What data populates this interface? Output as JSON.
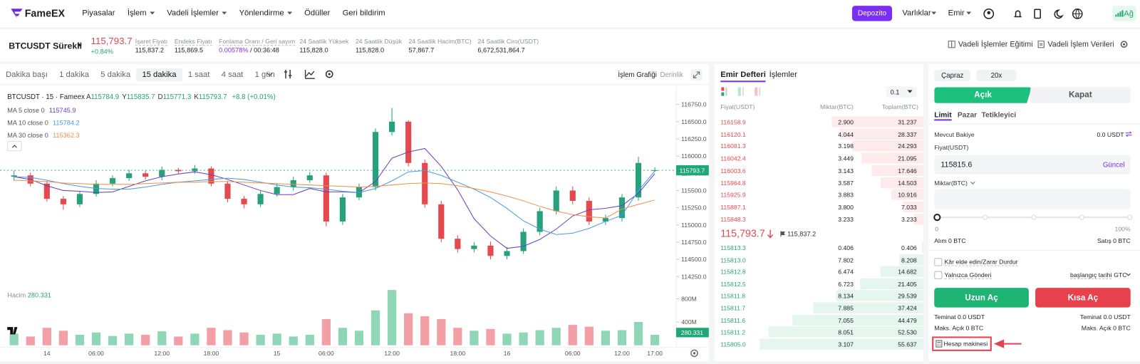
{
  "nav": {
    "logo": "FameEX",
    "items": [
      "Piyasalar",
      "İşlem",
      "Vadeli İşlemler",
      "Yönlendirme",
      "Ödüller",
      "Geri bildirim"
    ],
    "deposit": "Depozito",
    "assets": "Varlıklar",
    "orders": "Emir",
    "network": "Ağ"
  },
  "ticker": {
    "symbol": "BTCUSDT Sürekli",
    "price": "115,793.7",
    "change": "+0.84%",
    "stats": [
      {
        "label": "İşaret Fiyatı",
        "value": "115,837.2"
      },
      {
        "label": "Endeks Fiyatı",
        "value": "115,869.5"
      },
      {
        "label": "Fonlama Oranı / Geri sayım",
        "value": "0.00578%",
        "extra": "/ 00:36:48"
      },
      {
        "label": "24 Saatlik Yüksek",
        "value": "115,828.0"
      },
      {
        "label": "24 Saatlik Düşük",
        "value": "115,828.0"
      },
      {
        "label": "24 Saatlik Hacim(BTC)",
        "value": "57,867.7"
      },
      {
        "label": "24 Saatlik Ciro(USDT)",
        "value": "6,672,531,864.7"
      }
    ],
    "links": [
      "Vadeli İşlemler Eğitimi",
      "Vadeli İşlem Verileri"
    ]
  },
  "toolbar": {
    "intervals": [
      "Dakika başı",
      "1 dakika",
      "5 dakika",
      "15 dakika",
      "1 saat",
      "4 saat",
      "1 gün"
    ],
    "selected_interval": 3,
    "views": [
      "İşlem Grafiği",
      "Derinlik"
    ]
  },
  "chart_data": {
    "type": "candlestick",
    "title": "BTCUSDT · 15 · Fameex",
    "ohlc_keys": [
      "A",
      "Y",
      "D",
      "K"
    ],
    "change": "+8.8 (+0.01%)",
    "up_color": "#26a17b",
    "down_color": "#e5484d",
    "categories": [
      null,
      null,
      "14",
      null,
      null,
      "06:00",
      null,
      null,
      null,
      "12:00",
      null,
      null,
      "18:00",
      null,
      null,
      null,
      "15",
      null,
      null,
      "06:00",
      null,
      null,
      null,
      "12:00",
      null,
      null,
      null,
      "18:00",
      null,
      null,
      "16",
      null,
      null,
      null,
      "06:00",
      null,
      null,
      "12:00",
      null,
      "17:00"
    ],
    "candles": {
      "open": [
        115700,
        115720,
        115600,
        115380,
        115300,
        115450,
        115600,
        115680,
        115750,
        115700,
        115800,
        115780,
        115820,
        115600,
        115380,
        115300,
        115450,
        115550,
        115650,
        115720,
        115050,
        115400,
        115550,
        116350,
        116500,
        115900,
        115300,
        114800,
        114650,
        114700,
        114550,
        114620,
        114900,
        115200,
        115500,
        115350,
        115050,
        115100,
        115400,
        115784.9
      ],
      "high": [
        115790,
        115760,
        115640,
        115420,
        115490,
        115650,
        115720,
        115800,
        115790,
        115850,
        115830,
        115870,
        115850,
        115640,
        115420,
        115500,
        115600,
        115700,
        115770,
        115760,
        115450,
        115600,
        116400,
        116700,
        116520,
        115950,
        115350,
        114850,
        114750,
        114760,
        114680,
        114950,
        115250,
        115560,
        115560,
        115400,
        115150,
        115450,
        115990,
        115835.7
      ],
      "low": [
        115640,
        115560,
        115340,
        115220,
        115260,
        115410,
        115560,
        115640,
        115660,
        115650,
        115740,
        115740,
        115560,
        115330,
        115240,
        115260,
        115410,
        115500,
        115610,
        114980,
        115000,
        115360,
        115500,
        116300,
        115850,
        115250,
        114750,
        114600,
        114600,
        114500,
        114500,
        114580,
        114850,
        115150,
        115300,
        115000,
        115000,
        115050,
        115350,
        115771.3
      ],
      "close": [
        115720,
        115600,
        115380,
        115300,
        115450,
        115600,
        115680,
        115750,
        115700,
        115800,
        115780,
        115820,
        115600,
        115380,
        115300,
        115450,
        115550,
        115650,
        115720,
        115050,
        115400,
        115550,
        116350,
        116500,
        115900,
        115300,
        114800,
        114650,
        114700,
        114550,
        114620,
        114900,
        115200,
        115500,
        115350,
        115050,
        115100,
        115400,
        115900,
        115793.7
      ]
    },
    "ma": [
      {
        "name": "MA 5 close 0",
        "color": "#6d3fc0",
        "values": [
          115700,
          115660,
          115570,
          115500,
          115490,
          115470,
          115480,
          115560,
          115640,
          115700,
          115740,
          115770,
          115730,
          115660,
          115580,
          115500,
          115440,
          115440,
          115530,
          115480,
          115480,
          115470,
          115630,
          115970,
          116060,
          116110,
          115850,
          115510,
          115090,
          114840,
          114660,
          114690,
          114790,
          114940,
          115130,
          115220,
          115240,
          115280,
          115460,
          115745.9
        ]
      },
      {
        "name": "MA 10 close 0",
        "color": "#4a9be8",
        "values": [
          115700,
          115690,
          115650,
          115600,
          115560,
          115530,
          115520,
          115520,
          115550,
          115590,
          115620,
          115640,
          115660,
          115680,
          115660,
          115620,
          115580,
          115550,
          115540,
          115520,
          115490,
          115470,
          115530,
          115640,
          115770,
          115790,
          115720,
          115620,
          115520,
          115400,
          115240,
          115060,
          114940,
          114860,
          114880,
          114950,
          115050,
          115140,
          115500,
          115784.2
        ]
      },
      {
        "name": "MA 30 close 0",
        "color": "#f0904a",
        "values": [
          115650,
          115640,
          115630,
          115610,
          115600,
          115590,
          115590,
          115590,
          115600,
          115610,
          115620,
          115620,
          115630,
          115630,
          115620,
          115610,
          115600,
          115590,
          115580,
          115570,
          115560,
          115550,
          115560,
          115580,
          115600,
          115610,
          115600,
          115570,
          115530,
          115480,
          115420,
          115350,
          115270,
          115200,
          115150,
          115120,
          115100,
          115230,
          115300,
          115362.3
        ]
      }
    ],
    "ylim": [
      114150,
      117000
    ],
    "yticks": [
      {
        "value": 114250,
        "label": "114250.0"
      },
      {
        "value": 114500,
        "label": "114500.0"
      },
      {
        "value": 114750,
        "label": "114750.0"
      },
      {
        "value": 115000,
        "label": "115000.0"
      },
      {
        "value": 115250,
        "label": "115250.0"
      },
      {
        "value": 115500,
        "label": "115500.0"
      },
      {
        "value": 115750,
        "label": "115750.0"
      },
      {
        "value": 116000,
        "label": "116000.0"
      },
      {
        "value": 116250,
        "label": "116250.0"
      },
      {
        "value": 116500,
        "label": "116500.0"
      },
      {
        "value": 116750,
        "label": "116750.0"
      }
    ],
    "volume": {
      "name": "Hacim",
      "last_label": "280.331",
      "up_color": "#8fd6b6",
      "down_color": "#f2a0a6",
      "ylim": [
        0,
        1000
      ],
      "yticks": [
        {
          "value": 400,
          "label": "400M"
        },
        {
          "value": 800,
          "label": "800M"
        }
      ],
      "values": [
        200,
        150,
        300,
        250,
        180,
        220,
        160,
        200,
        180,
        240,
        150,
        200,
        300,
        260,
        220,
        180,
        200,
        150,
        180,
        450,
        300,
        250,
        600,
        950,
        550,
        500,
        450,
        300,
        250,
        280,
        200,
        220,
        260,
        300,
        350,
        320,
        250,
        260,
        400,
        180
      ]
    }
  },
  "order_book": {
    "tabs": [
      "Emir Defteri",
      "İşlemler"
    ],
    "precision": "0.1",
    "columns": [
      "Fiyat(USDT)",
      "Miktar(BTC)",
      "Toplam(BTC)"
    ],
    "asks": [
      {
        "price": "116158.9",
        "amount": "2.900",
        "total": "31.237"
      },
      {
        "price": "116120.1",
        "amount": "4.044",
        "total": "28.337"
      },
      {
        "price": "116081.3",
        "amount": "3.198",
        "total": "24.293"
      },
      {
        "price": "116042.4",
        "amount": "3.449",
        "total": "21.095"
      },
      {
        "price": "116003.6",
        "amount": "3.143",
        "total": "17.646"
      },
      {
        "price": "115964.8",
        "amount": "3.587",
        "total": "14.503"
      },
      {
        "price": "115925.9",
        "amount": "3.883",
        "total": "10.916"
      },
      {
        "price": "115887.1",
        "amount": "3.800",
        "total": "7.033"
      },
      {
        "price": "115848.3",
        "amount": "3.233",
        "total": "3.233"
      }
    ],
    "last_price": "115,793.7",
    "mark_price": "115,837.2",
    "bids": [
      {
        "price": "115813.3",
        "amount": "0.406",
        "total": "0.406"
      },
      {
        "price": "115813.0",
        "amount": "7.802",
        "total": "8.208"
      },
      {
        "price": "115812.8",
        "amount": "6.474",
        "total": "14.682"
      },
      {
        "price": "115812.5",
        "amount": "6.723",
        "total": "21.405"
      },
      {
        "price": "115811.8",
        "amount": "8.134",
        "total": "29.539"
      },
      {
        "price": "115811.7",
        "amount": "7.885",
        "total": "37.424"
      },
      {
        "price": "115811.6",
        "amount": "7.055",
        "total": "44.479"
      },
      {
        "price": "115811.2",
        "amount": "8.051",
        "total": "52.530"
      },
      {
        "price": "115805.0",
        "amount": "3.107",
        "total": "55.637"
      }
    ]
  },
  "order_form": {
    "margin_mode": "Çapraz",
    "leverage": "20x",
    "open": "Açık",
    "close": "Kapat",
    "tabs": [
      "Limit",
      "Pazar",
      "Tetikleyici"
    ],
    "balance_label": "Mevcut Bakiye",
    "balance": "0.0 USDT",
    "price_label": "Fiyat(USDT)",
    "price": "115815.6",
    "latest": "Güncel",
    "amount_label": "Miktar(BTC)",
    "slider_min": "0",
    "slider_max": "100%",
    "buy_max": "Alım 0 BTC",
    "sell_max": "Satış 0 BTC",
    "tp_sl": "Kâr elde edin/Zarar Durdur",
    "post_only": "Yalnızca Gönderi",
    "time_in_force_label": "başlangıç tarihi",
    "time_in_force": "GTC",
    "long": "Uzun Aç",
    "short": "Kısa Aç",
    "long_margin": "Teminat 0.0 USDT",
    "short_margin": "Teminat 0.0 USDT",
    "long_max": "Maks. Açık 0 BTC",
    "short_max": "Maks. Açık 0 BTC",
    "calculator": "Hesap makinesi"
  }
}
